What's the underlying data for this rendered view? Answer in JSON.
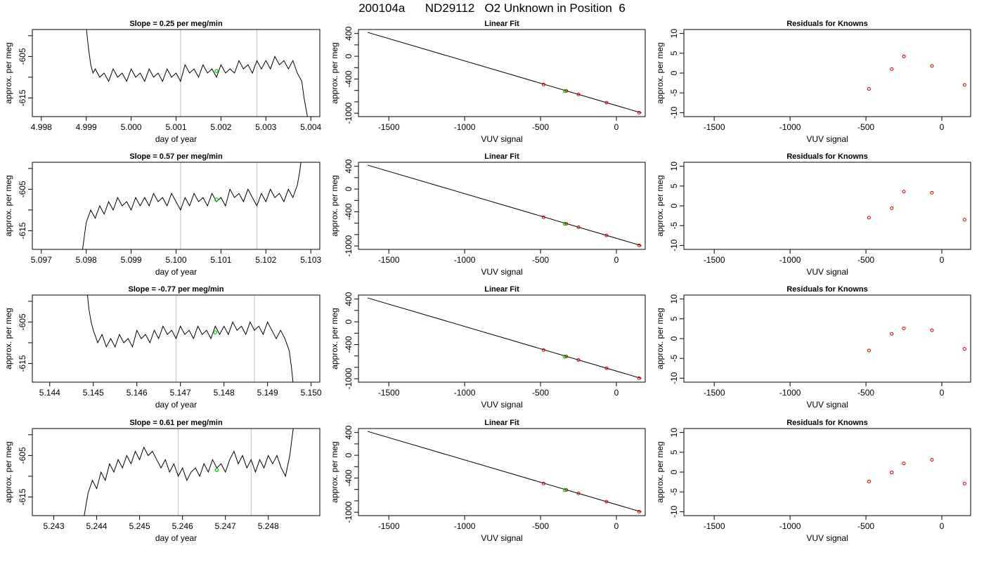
{
  "figure_title": "200104a      ND29112   O2 Unknown in Position  6",
  "colors": {
    "trace": "#000000",
    "fit_line": "#000000",
    "known_points": "#cc0000",
    "unknown_points": "#00cc00",
    "marker_lines": "#c8c8c8",
    "frame": "#000000"
  },
  "chart_data": [
    {
      "type": "line",
      "title": "Slope =  0.25  per meg/min",
      "xlabel": "day of year",
      "ylabel": "approx. per meg",
      "xlim": [
        4.9978,
        5.0042
      ],
      "ylim": [
        -619.5,
        -598.5
      ],
      "x_ticks": [
        "4.998",
        "4.999",
        "5.000",
        "5.001",
        "5.002",
        "5.003",
        "5.004"
      ],
      "x_tick_values": [
        4.998,
        4.999,
        5.0,
        5.001,
        5.002,
        5.003,
        5.004
      ],
      "y_ticks": [
        "-605",
        "-615"
      ],
      "y_tick_values": [
        -605,
        -615
      ],
      "y_minor_ticks": [
        -600,
        -610
      ],
      "vertical_markers": [
        5.0011,
        5.0028
      ],
      "trace_x": [
        4.99898,
        4.99905,
        4.9991,
        4.99915,
        4.9992,
        4.9993,
        4.9994,
        4.9995,
        4.9996,
        4.9997,
        4.9998,
        4.9999,
        5.0,
        5.0001,
        5.0002,
        5.0003,
        5.0004,
        5.0005,
        5.0006,
        5.0007,
        5.0008,
        5.0009,
        5.001,
        5.0011,
        5.0012,
        5.0013,
        5.0014,
        5.0015,
        5.0016,
        5.0017,
        5.0018,
        5.0019,
        5.002,
        5.0021,
        5.0022,
        5.0023,
        5.0024,
        5.0025,
        5.0026,
        5.0027,
        5.0028,
        5.0029,
        5.003,
        5.0031,
        5.0032,
        5.0033,
        5.0034,
        5.0035,
        5.0036,
        5.0037,
        5.0038,
        5.00385,
        5.0039,
        5.00395
      ],
      "trace_y": [
        -596,
        -603,
        -607,
        -609,
        -608,
        -610,
        -609,
        -611,
        -608,
        -610,
        -609,
        -611,
        -608,
        -610,
        -609,
        -611,
        -608,
        -610,
        -609,
        -611,
        -608,
        -610,
        -609,
        -611,
        -607,
        -609,
        -608,
        -610,
        -607,
        -609,
        -608,
        -610,
        -607,
        -609,
        -608,
        -609,
        -606,
        -608,
        -607,
        -609,
        -606,
        -608,
        -606,
        -608,
        -605,
        -607,
        -606,
        -608,
        -606,
        -609,
        -611,
        -615,
        -618,
        -621
      ],
      "known_point_x": [],
      "known_point_y": [],
      "unknown_point_x": [
        5.0019
      ],
      "unknown_point_y": [
        -608.5
      ]
    },
    {
      "type": "scatter",
      "title": "Linear Fit",
      "xlabel": "VUV signal",
      "ylabel": "approx. per meg",
      "xlim": [
        -1700,
        190
      ],
      "ylim": [
        -1060,
        470
      ],
      "x_ticks": [
        "-1500",
        "-1000",
        "-500",
        "0"
      ],
      "x_tick_values": [
        -1500,
        -1000,
        -500,
        0
      ],
      "y_ticks": [
        "400",
        "0",
        "-400",
        "-1000"
      ],
      "y_tick_values": [
        400,
        0,
        -400,
        -1000
      ],
      "y_minor_ticks": [
        200,
        -200,
        -600,
        -800
      ],
      "fit_line": [
        [
          -1640,
          420
        ],
        [
          165,
          -995
        ]
      ],
      "known_point_x": [
        -480,
        -330,
        -250,
        -65,
        150
      ],
      "known_point_y": [
        -495,
        -610,
        -670,
        -815,
        -990
      ],
      "unknown_point_x": [
        -340
      ],
      "unknown_point_y": [
        -610
      ]
    },
    {
      "type": "scatter",
      "title": "Residuals for Knowns",
      "xlabel": "VUV signal",
      "ylabel": "approx. per meg",
      "xlim": [
        -1700,
        190
      ],
      "ylim": [
        -11,
        11
      ],
      "x_ticks": [
        "-1500",
        "-1000",
        "-500",
        "0"
      ],
      "x_tick_values": [
        -1500,
        -1000,
        -500,
        0
      ],
      "y_ticks": [
        "10",
        "5",
        "0",
        "-5",
        "-10"
      ],
      "y_tick_values": [
        10,
        5,
        0,
        -5,
        -10
      ],
      "y_minor_ticks": [],
      "known_point_x": [
        -480,
        -330,
        -250,
        -65,
        150
      ],
      "known_point_y": [
        -4,
        1,
        4.2,
        1.8,
        -3
      ],
      "unknown_point_x": [],
      "unknown_point_y": []
    },
    {
      "type": "line",
      "title": "Slope =  0.57  per meg/min",
      "xlabel": "day of year",
      "ylabel": "approx. per meg",
      "xlim": [
        5.0968,
        5.1032
      ],
      "ylim": [
        -619.5,
        -598.5
      ],
      "x_ticks": [
        "5.097",
        "5.098",
        "5.099",
        "5.100",
        "5.101",
        "5.102",
        "5.103"
      ],
      "x_tick_values": [
        5.097,
        5.098,
        5.099,
        5.1,
        5.101,
        5.102,
        5.103
      ],
      "y_ticks": [
        "-605",
        "-615"
      ],
      "y_tick_values": [
        -605,
        -615
      ],
      "y_minor_ticks": [
        -600,
        -610
      ],
      "vertical_markers": [
        5.1001,
        5.1018
      ],
      "trace_x": [
        5.0979,
        5.09795,
        5.098,
        5.0981,
        5.0982,
        5.0983,
        5.0984,
        5.0985,
        5.0986,
        5.0987,
        5.0988,
        5.0989,
        5.099,
        5.0991,
        5.0992,
        5.0993,
        5.0994,
        5.0995,
        5.0996,
        5.0997,
        5.0998,
        5.0999,
        5.1,
        5.1001,
        5.1002,
        5.1003,
        5.1004,
        5.1005,
        5.1006,
        5.1007,
        5.1008,
        5.1009,
        5.101,
        5.1011,
        5.1012,
        5.1013,
        5.1014,
        5.1015,
        5.1016,
        5.1017,
        5.1018,
        5.1019,
        5.102,
        5.1021,
        5.1022,
        5.1023,
        5.1024,
        5.1025,
        5.1026,
        5.1027,
        5.10275,
        5.1028
      ],
      "trace_y": [
        -621,
        -617,
        -613,
        -610,
        -612,
        -609,
        -611,
        -608,
        -610,
        -607,
        -609,
        -608,
        -610,
        -607,
        -609,
        -607,
        -609,
        -606,
        -608,
        -607,
        -609,
        -606,
        -608,
        -610,
        -607,
        -609,
        -606,
        -608,
        -607,
        -609,
        -606,
        -608,
        -607,
        -609,
        -605,
        -607,
        -606,
        -608,
        -605,
        -607,
        -609,
        -606,
        -608,
        -605,
        -607,
        -606,
        -608,
        -605,
        -607,
        -604,
        -601,
        -597
      ],
      "known_point_x": [],
      "known_point_y": [],
      "unknown_point_x": [
        5.1009
      ],
      "unknown_point_y": [
        -607.5
      ]
    },
    {
      "type": "scatter",
      "title": "Linear Fit",
      "xlabel": "VUV signal",
      "ylabel": "approx. per meg",
      "xlim": [
        -1700,
        190
      ],
      "ylim": [
        -1060,
        470
      ],
      "x_ticks": [
        "-1500",
        "-1000",
        "-500",
        "0"
      ],
      "x_tick_values": [
        -1500,
        -1000,
        -500,
        0
      ],
      "y_ticks": [
        "400",
        "0",
        "-400",
        "-1000"
      ],
      "y_tick_values": [
        400,
        0,
        -400,
        -1000
      ],
      "y_minor_ticks": [
        200,
        -200,
        -600,
        -800
      ],
      "fit_line": [
        [
          -1640,
          420
        ],
        [
          165,
          -995
        ]
      ],
      "known_point_x": [
        -480,
        -330,
        -250,
        -65,
        150
      ],
      "known_point_y": [
        -495,
        -610,
        -670,
        -815,
        -990
      ],
      "unknown_point_x": [
        -340
      ],
      "unknown_point_y": [
        -610
      ]
    },
    {
      "type": "scatter",
      "title": "Residuals for Knowns",
      "xlabel": "VUV signal",
      "ylabel": "approx. per meg",
      "xlim": [
        -1700,
        190
      ],
      "ylim": [
        -11,
        11
      ],
      "x_ticks": [
        "-1500",
        "-1000",
        "-500",
        "0"
      ],
      "x_tick_values": [
        -1500,
        -1000,
        -500,
        0
      ],
      "y_ticks": [
        "10",
        "5",
        "0",
        "-5",
        "-10"
      ],
      "y_tick_values": [
        10,
        5,
        0,
        -5,
        -10
      ],
      "y_minor_ticks": [],
      "known_point_x": [
        -480,
        -330,
        -250,
        -65,
        150
      ],
      "known_point_y": [
        -3,
        -0.6,
        3.6,
        3.3,
        -3.5
      ],
      "unknown_point_x": [],
      "unknown_point_y": []
    },
    {
      "type": "line",
      "title": "Slope =  -0.77  per meg/min",
      "xlabel": "day of year",
      "ylabel": "approx. per meg",
      "xlim": [
        5.1436,
        5.1502
      ],
      "ylim": [
        -619.5,
        -598.5
      ],
      "x_ticks": [
        "5.144",
        "5.145",
        "5.146",
        "5.147",
        "5.148",
        "5.149",
        "5.150"
      ],
      "x_tick_values": [
        5.144,
        5.145,
        5.146,
        5.147,
        5.148,
        5.149,
        5.15
      ],
      "y_ticks": [
        "-605",
        "-615"
      ],
      "y_tick_values": [
        -605,
        -615
      ],
      "y_minor_ticks": [
        -600,
        -610
      ],
      "vertical_markers": [
        5.1469,
        5.1487
      ],
      "trace_x": [
        5.14485,
        5.1449,
        5.14495,
        5.145,
        5.1451,
        5.1452,
        5.1453,
        5.1454,
        5.1455,
        5.1456,
        5.1457,
        5.1458,
        5.1459,
        5.146,
        5.1461,
        5.1462,
        5.1463,
        5.1464,
        5.1465,
        5.1466,
        5.1467,
        5.1468,
        5.1469,
        5.147,
        5.1471,
        5.1472,
        5.1473,
        5.1474,
        5.1475,
        5.1476,
        5.1477,
        5.1478,
        5.1479,
        5.148,
        5.1481,
        5.1482,
        5.1483,
        5.1484,
        5.1485,
        5.1486,
        5.1487,
        5.1488,
        5.1489,
        5.149,
        5.1491,
        5.1492,
        5.1493,
        5.1494,
        5.1495,
        5.14955,
        5.1496
      ],
      "trace_y": [
        -597,
        -602,
        -605,
        -607,
        -610,
        -608,
        -611,
        -609,
        -611,
        -608,
        -610,
        -609,
        -611,
        -607,
        -609,
        -608,
        -610,
        -607,
        -609,
        -606,
        -608,
        -607,
        -609,
        -606,
        -608,
        -607,
        -609,
        -606,
        -608,
        -607,
        -609,
        -606,
        -608,
        -606,
        -608,
        -605,
        -607,
        -606,
        -608,
        -605,
        -607,
        -606,
        -608,
        -605,
        -607,
        -609,
        -607,
        -609,
        -612,
        -616,
        -621
      ],
      "known_point_x": [],
      "known_point_y": [],
      "unknown_point_x": [
        5.1478
      ],
      "unknown_point_y": [
        -607.5
      ]
    },
    {
      "type": "scatter",
      "title": "Linear Fit",
      "xlabel": "VUV signal",
      "ylabel": "approx. per meg",
      "xlim": [
        -1700,
        190
      ],
      "ylim": [
        -1060,
        470
      ],
      "x_ticks": [
        "-1500",
        "-1000",
        "-500",
        "0"
      ],
      "x_tick_values": [
        -1500,
        -1000,
        -500,
        0
      ],
      "y_ticks": [
        "400",
        "0",
        "-400",
        "-1000"
      ],
      "y_tick_values": [
        400,
        0,
        -400,
        -1000
      ],
      "y_minor_ticks": [
        200,
        -200,
        -600,
        -800
      ],
      "fit_line": [
        [
          -1640,
          420
        ],
        [
          165,
          -995
        ]
      ],
      "known_point_x": [
        -480,
        -330,
        -250,
        -65,
        150
      ],
      "known_point_y": [
        -495,
        -610,
        -670,
        -815,
        -990
      ],
      "unknown_point_x": [
        -340
      ],
      "unknown_point_y": [
        -610
      ]
    },
    {
      "type": "scatter",
      "title": "Residuals for Knowns",
      "xlabel": "VUV signal",
      "ylabel": "approx. per meg",
      "xlim": [
        -1700,
        190
      ],
      "ylim": [
        -11,
        11
      ],
      "x_ticks": [
        "-1500",
        "-1000",
        "-500",
        "0"
      ],
      "x_tick_values": [
        -1500,
        -1000,
        -500,
        0
      ],
      "y_ticks": [
        "10",
        "5",
        "0",
        "-5",
        "-10"
      ],
      "y_tick_values": [
        10,
        5,
        0,
        -5,
        -10
      ],
      "y_minor_ticks": [],
      "known_point_x": [
        -480,
        -330,
        -250,
        -65,
        150
      ],
      "known_point_y": [
        -3,
        1.2,
        2.6,
        2.1,
        -2.6
      ],
      "unknown_point_x": [],
      "unknown_point_y": []
    },
    {
      "type": "line",
      "title": "Slope =  0.61  per meg/min",
      "xlabel": "day of year",
      "ylabel": "approx. per meg",
      "xlim": [
        5.2425,
        5.2492
      ],
      "ylim": [
        -619.5,
        -598.5
      ],
      "x_ticks": [
        "5.243",
        "5.244",
        "5.245",
        "5.246",
        "5.247",
        "5.248"
      ],
      "x_tick_values": [
        5.243,
        5.244,
        5.245,
        5.246,
        5.247,
        5.248
      ],
      "y_ticks": [
        "-605",
        "-615"
      ],
      "y_tick_values": [
        -605,
        -615
      ],
      "y_minor_ticks": [
        -600,
        -610
      ],
      "vertical_markers": [
        5.2459,
        5.2476
      ],
      "trace_x": [
        5.2437,
        5.24375,
        5.2438,
        5.2439,
        5.244,
        5.2441,
        5.2442,
        5.2443,
        5.2444,
        5.2445,
        5.2446,
        5.2447,
        5.2448,
        5.2449,
        5.245,
        5.2451,
        5.2452,
        5.2453,
        5.2454,
        5.2455,
        5.2456,
        5.2457,
        5.2458,
        5.2459,
        5.246,
        5.2461,
        5.2462,
        5.2463,
        5.2464,
        5.2465,
        5.2466,
        5.2467,
        5.2468,
        5.2469,
        5.247,
        5.2471,
        5.2472,
        5.2473,
        5.2474,
        5.2475,
        5.2476,
        5.2477,
        5.2478,
        5.2479,
        5.248,
        5.2481,
        5.2482,
        5.2483,
        5.2484,
        5.2485,
        5.24855,
        5.2486
      ],
      "trace_y": [
        -620,
        -617,
        -614,
        -611,
        -613,
        -609,
        -611,
        -607,
        -609,
        -606,
        -608,
        -605,
        -607,
        -604,
        -606,
        -603,
        -605,
        -604,
        -606,
        -608,
        -606,
        -609,
        -607,
        -610,
        -608,
        -611,
        -609,
        -608,
        -610,
        -607,
        -609,
        -606,
        -608,
        -607,
        -609,
        -606,
        -604,
        -607,
        -605,
        -608,
        -606,
        -609,
        -606,
        -608,
        -605,
        -607,
        -605,
        -608,
        -610,
        -605,
        -601,
        -597
      ],
      "known_point_x": [],
      "known_point_y": [],
      "unknown_point_x": [
        5.2468
      ],
      "unknown_point_y": [
        -608.5
      ]
    },
    {
      "type": "scatter",
      "title": "Linear Fit",
      "xlabel": "VUV signal",
      "ylabel": "approx. per meg",
      "xlim": [
        -1700,
        190
      ],
      "ylim": [
        -1060,
        470
      ],
      "x_ticks": [
        "-1500",
        "-1000",
        "-500",
        "0"
      ],
      "x_tick_values": [
        -1500,
        -1000,
        -500,
        0
      ],
      "y_ticks": [
        "400",
        "0",
        "-400",
        "-1000"
      ],
      "y_tick_values": [
        400,
        0,
        -400,
        -1000
      ],
      "y_minor_ticks": [
        200,
        -200,
        -600,
        -800
      ],
      "fit_line": [
        [
          -1640,
          420
        ],
        [
          165,
          -995
        ]
      ],
      "known_point_x": [
        -480,
        -330,
        -250,
        -65,
        150
      ],
      "known_point_y": [
        -495,
        -610,
        -670,
        -815,
        -990
      ],
      "unknown_point_x": [
        -340
      ],
      "unknown_point_y": [
        -610
      ]
    },
    {
      "type": "scatter",
      "title": "Residuals for Knowns",
      "xlabel": "VUV signal",
      "ylabel": "approx. per meg",
      "xlim": [
        -1700,
        190
      ],
      "ylim": [
        -11,
        11
      ],
      "x_ticks": [
        "-1500",
        "-1000",
        "-500",
        "0"
      ],
      "x_tick_values": [
        -1500,
        -1000,
        -500,
        0
      ],
      "y_ticks": [
        "10",
        "5",
        "0",
        "-5",
        "-10"
      ],
      "y_tick_values": [
        10,
        5,
        0,
        -5,
        -10
      ],
      "y_minor_ticks": [],
      "known_point_x": [
        -480,
        -330,
        -250,
        -65,
        150
      ],
      "known_point_y": [
        -2.4,
        -0.1,
        2.2,
        3.1,
        -2.9
      ],
      "unknown_point_x": [],
      "unknown_point_y": []
    }
  ]
}
